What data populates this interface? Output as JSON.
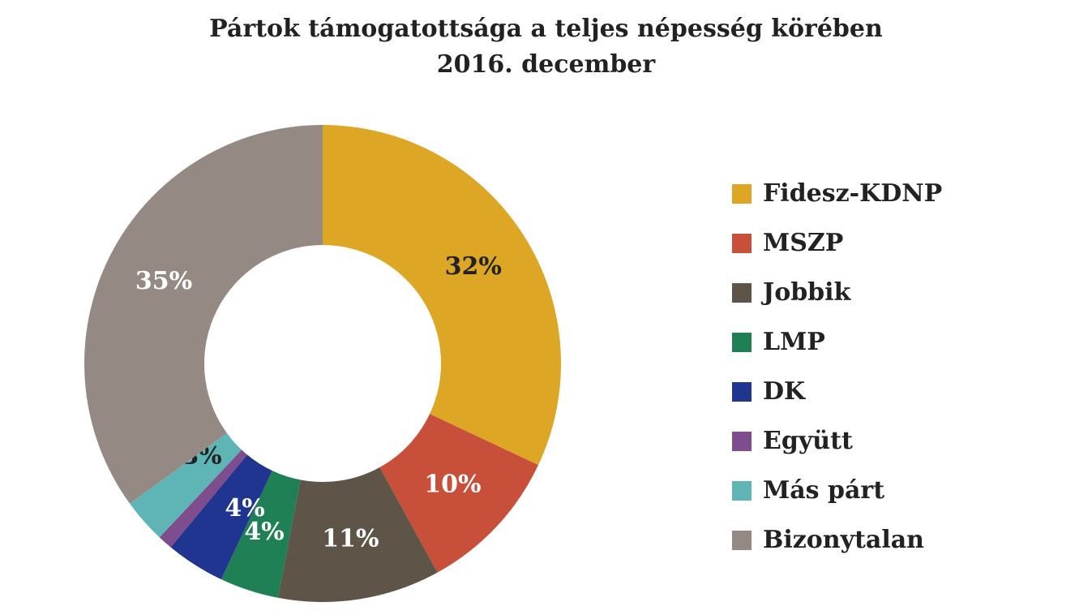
{
  "chart_data": {
    "type": "pie",
    "title": "Pártok támogatottsága a teljes népesség körében",
    "subtitle": "2016. december",
    "legend_position": "right",
    "slices": [
      {
        "name": "Fidesz-KDNP",
        "value": 32,
        "label": "32%",
        "color": "#DDA624",
        "label_color": "#222222"
      },
      {
        "name": "MSZP",
        "value": 10,
        "label": "10%",
        "color": "#C8503A",
        "label_color": "#ffffff"
      },
      {
        "name": "Jobbik",
        "value": 11,
        "label": "11%",
        "color": "#5E5548",
        "label_color": "#ffffff"
      },
      {
        "name": "LMP",
        "value": 4,
        "label": "4%",
        "color": "#1F7F55",
        "label_color": "#ffffff"
      },
      {
        "name": "DK",
        "value": 4,
        "label": "4%",
        "color": "#1F3590",
        "label_color": "#ffffff"
      },
      {
        "name": "Együtt",
        "value": 1,
        "label": "1%",
        "color": "#7E4D8E",
        "label_color": "#ffffff"
      },
      {
        "name": "Más párt",
        "value": 3,
        "label": "3%",
        "color": "#5FB5B5",
        "label_color": "#222222"
      },
      {
        "name": "Bizonytalan",
        "value": 35,
        "label": "35%",
        "color": "#948A83",
        "label_color": "#ffffff"
      }
    ]
  }
}
